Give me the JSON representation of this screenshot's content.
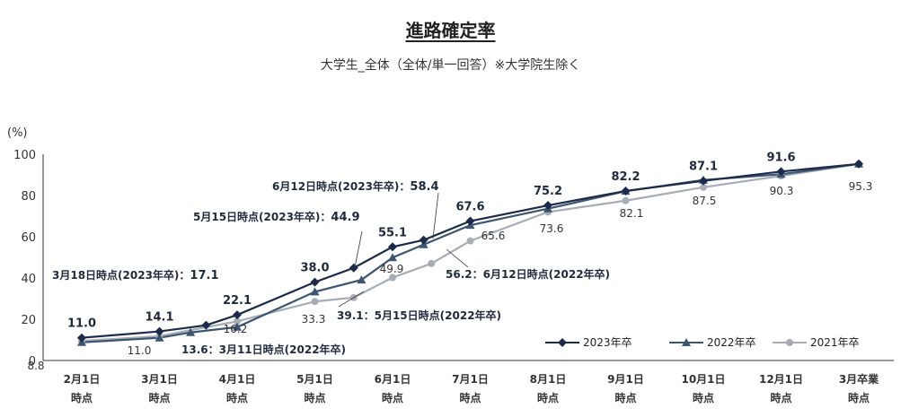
{
  "title": "進路確定率",
  "subtitle": "大学生_全体（全体/単一回答）※大学院生除く",
  "chart_data": {
    "type": "line",
    "ylabel": "(%)",
    "ylim": [
      0,
      100
    ],
    "yticks": [
      0,
      20,
      40,
      60,
      80,
      100
    ],
    "categories": [
      [
        "2月1日",
        "時点"
      ],
      [
        "3月1日",
        "時点"
      ],
      [
        "4月1日",
        "時点"
      ],
      [
        "5月1日",
        "時点"
      ],
      [
        "6月1日",
        "時点"
      ],
      [
        "7月1日",
        "時点"
      ],
      [
        "8月1日",
        "時点"
      ],
      [
        "9月1日",
        "時点"
      ],
      [
        "10月1日",
        "時点"
      ],
      [
        "12月1日",
        "時点"
      ],
      [
        "3月卒業",
        "時点"
      ]
    ],
    "series": [
      {
        "name": "2023年卒",
        "color": "#1c2b4a",
        "marker": "diamond",
        "points": [
          [
            0,
            11.0
          ],
          [
            1,
            14.1
          ],
          [
            1.6,
            17.1
          ],
          [
            2,
            22.1
          ],
          [
            3,
            38.0
          ],
          [
            3.5,
            44.9
          ],
          [
            4,
            55.1
          ],
          [
            4.4,
            58.4
          ],
          [
            5,
            67.6
          ],
          [
            6,
            75.2
          ],
          [
            7,
            82.2
          ],
          [
            8,
            87.1
          ],
          [
            9,
            91.6
          ],
          [
            10,
            95.3
          ]
        ]
      },
      {
        "name": "2022年卒",
        "color": "#3c5570",
        "marker": "triangle",
        "points": [
          [
            0,
            8.8
          ],
          [
            1,
            11.0
          ],
          [
            1.4,
            13.6
          ],
          [
            2,
            16.2
          ],
          [
            3,
            33.3
          ],
          [
            3.6,
            39.1
          ],
          [
            4,
            49.9
          ],
          [
            4.4,
            56.2
          ],
          [
            5,
            65.6
          ],
          [
            6,
            73.6
          ],
          [
            7,
            82.1
          ],
          [
            8,
            87.5
          ],
          [
            9,
            90.3
          ],
          [
            10,
            95.3
          ]
        ]
      },
      {
        "name": "2021年卒",
        "color": "#a6adb6",
        "marker": "circle",
        "points": [
          [
            0,
            9.5
          ],
          [
            1,
            11.8
          ],
          [
            2,
            19.0
          ],
          [
            3,
            28.6
          ],
          [
            3.5,
            30.5
          ],
          [
            4,
            40.2
          ],
          [
            4.5,
            47.0
          ],
          [
            5,
            58.0
          ],
          [
            6,
            72.0
          ],
          [
            7,
            77.5
          ],
          [
            8,
            84.0
          ],
          [
            9,
            89.5
          ],
          [
            10,
            95.3
          ]
        ]
      }
    ],
    "labels_2023": [
      {
        "text": "11.0",
        "i": 0
      },
      {
        "text": "14.1",
        "i": 1
      },
      {
        "text": "22.1",
        "i": 3
      },
      {
        "text": "38.0",
        "i": 4
      },
      {
        "text": "55.1",
        "i": 6
      },
      {
        "text": "67.6",
        "i": 8
      },
      {
        "text": "75.2",
        "i": 9
      },
      {
        "text": "82.2",
        "i": 10
      },
      {
        "text": "87.1",
        "i": 11
      },
      {
        "text": "91.6",
        "i": 12
      }
    ],
    "labels_other": [
      {
        "text": "8.8"
      },
      {
        "text": "11.0"
      },
      {
        "text": "16.2"
      },
      {
        "text": "33.3"
      },
      {
        "text": "49.9"
      },
      {
        "text": "65.6"
      },
      {
        "text": "73.6"
      },
      {
        "text": "82.1"
      },
      {
        "text": "87.5"
      },
      {
        "text": "90.3"
      },
      {
        "text": "95.3"
      }
    ],
    "annotations": [
      {
        "text": "3月18日時点(2023年卒)：",
        "value": "17.1"
      },
      {
        "text": "5月15日時点(2023年卒)：",
        "value": "44.9"
      },
      {
        "text": "6月12日時点(2023年卒)：",
        "value": "58.4"
      },
      {
        "text": "13.6：3月11日時点(2022年卒)"
      },
      {
        "text": "39.1：5月15日時点(2022年卒)"
      },
      {
        "text": "56.2：6月12日時点(2022年卒)"
      }
    ],
    "legend": [
      "2023年卒",
      "2022年卒",
      "2021年卒"
    ]
  }
}
